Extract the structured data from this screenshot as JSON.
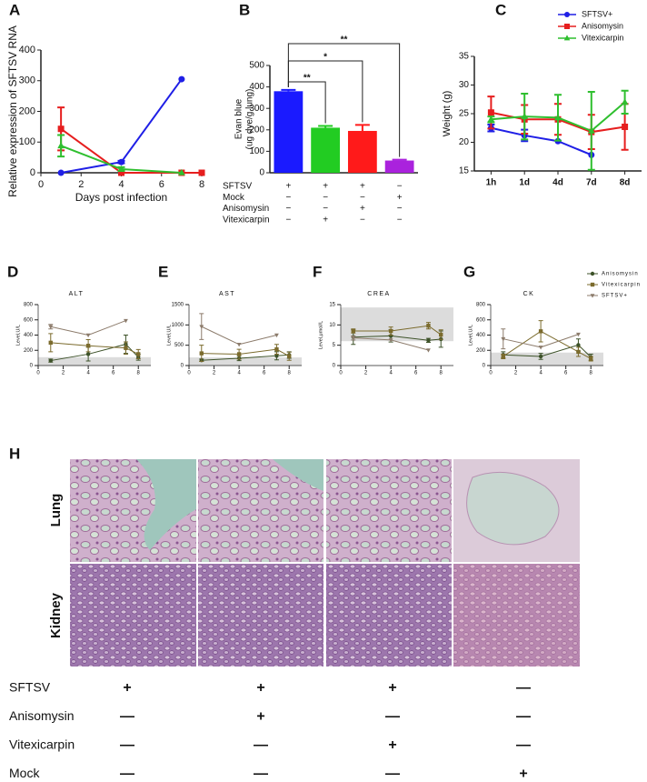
{
  "chart_data": [
    {
      "type": "line",
      "panel": "A",
      "ylabel": "Relative expression of SFTSV RNA",
      "xlabel": "Days post infection",
      "xlim": [
        0,
        8
      ],
      "xticks": [
        0,
        2,
        4,
        6,
        8
      ],
      "ylim": [
        0,
        400
      ],
      "yticks": [
        0,
        100,
        200,
        300,
        400
      ],
      "series": [
        {
          "color": "#1f1fe6",
          "marker": "circle",
          "x": [
            1,
            4,
            7
          ],
          "values": [
            0,
            35,
            305
          ],
          "errors": [
            0,
            4,
            0
          ]
        },
        {
          "color": "#e61e1e",
          "marker": "square",
          "x": [
            1,
            4,
            7,
            8
          ],
          "values": [
            143,
            0,
            0,
            0
          ],
          "errors": [
            70,
            0,
            0,
            0
          ]
        },
        {
          "color": "#2fbf2f",
          "marker": "triangle",
          "x": [
            1,
            4,
            7
          ],
          "values": [
            88,
            12,
            0
          ],
          "errors": [
            35,
            6,
            0
          ]
        }
      ]
    },
    {
      "type": "bar",
      "panel": "B",
      "ylabel": [
        "Evan blue",
        "(ug dye/g lung)"
      ],
      "ylim": [
        0,
        500
      ],
      "yticks": [
        0,
        100,
        200,
        300,
        400,
        500
      ],
      "values": [
        380,
        210,
        195,
        57
      ],
      "errors": [
        6,
        8,
        28,
        4
      ],
      "colors": [
        "#1a1aff",
        "#22cc22",
        "#ff1a1a",
        "#aa22dd"
      ],
      "annotations": [
        "**",
        "*",
        "**"
      ],
      "treatments": [
        {
          "label": "SFTSV",
          "cells": [
            "+",
            "+",
            "+",
            "−"
          ]
        },
        {
          "label": "Mock",
          "cells": [
            "−",
            "−",
            "−",
            "+"
          ]
        },
        {
          "label": "Anisomysin",
          "cells": [
            "−",
            "−",
            "+",
            "−"
          ]
        },
        {
          "label": "Vitexicarpin",
          "cells": [
            "−",
            "+",
            "−",
            "−"
          ]
        }
      ]
    },
    {
      "type": "line",
      "panel": "C",
      "ylabel": "Weight (g)",
      "categories": [
        "1h",
        "1d",
        "4d",
        "7d",
        "8d"
      ],
      "ylim": [
        15,
        35
      ],
      "yticks": [
        15,
        20,
        25,
        30,
        35
      ],
      "legend": "top-right",
      "series": [
        {
          "name": "SFTSV+",
          "color": "#1f1fe6",
          "marker": "circle",
          "values": [
            22.5,
            21.2,
            20.2,
            17.8,
            null
          ],
          "errors": [
            0.6,
            1,
            0,
            0,
            null
          ]
        },
        {
          "name": "Anisomysin",
          "color": "#e61e1e",
          "marker": "square",
          "values": [
            25.2,
            24,
            24,
            21.8,
            22.7
          ],
          "errors": [
            2.8,
            2.5,
            2.7,
            3,
            4
          ]
        },
        {
          "name": "Vitexicarpin",
          "color": "#2fbf2f",
          "marker": "triangle",
          "values": [
            24,
            24.5,
            24.3,
            22,
            27
          ],
          "errors": [
            0.5,
            4,
            4,
            6.8,
            2
          ]
        }
      ]
    },
    {
      "type": "line",
      "panel": "D",
      "title": "ALT",
      "ylabel": "Level,U/L",
      "xlim": [
        0,
        9
      ],
      "xticks": [
        0,
        2,
        4,
        6,
        8
      ],
      "ylim": [
        0,
        800
      ],
      "yticks": [
        0,
        200,
        400,
        600,
        800
      ],
      "reference_range": [
        0,
        110
      ],
      "series": [
        {
          "color": "#3d5229",
          "marker": "circle",
          "x": [
            1,
            4,
            7,
            8
          ],
          "values": [
            65,
            150,
            280,
            110
          ],
          "errors": [
            20,
            90,
            120,
            40
          ]
        },
        {
          "color": "#7b6b2d",
          "marker": "square",
          "x": [
            1,
            4,
            7,
            8
          ],
          "values": [
            300,
            260,
            230,
            150
          ],
          "errors": [
            120,
            80,
            80,
            60
          ]
        },
        {
          "color": "#8c7b6b",
          "marker": "triangle-down",
          "x": [
            1,
            4,
            7
          ],
          "values": [
            510,
            400,
            590
          ],
          "errors": [
            30,
            0,
            0
          ]
        }
      ]
    },
    {
      "type": "line",
      "panel": "E",
      "title": "AST",
      "ylabel": "Level,U/L",
      "xlim": [
        0,
        9
      ],
      "xticks": [
        0,
        2,
        4,
        6,
        8
      ],
      "ylim": [
        0,
        1500
      ],
      "yticks": [
        0,
        500,
        1000,
        1500
      ],
      "reference_range": [
        0,
        200
      ],
      "series": [
        {
          "color": "#3d5229",
          "marker": "circle",
          "x": [
            1,
            4,
            7,
            8
          ],
          "values": [
            130,
            180,
            240,
            260
          ],
          "errors": [
            30,
            60,
            100,
            80
          ]
        },
        {
          "color": "#7b6b2d",
          "marker": "square",
          "x": [
            1,
            4,
            7,
            8
          ],
          "values": [
            300,
            280,
            400,
            230
          ],
          "errors": [
            200,
            120,
            120,
            100
          ]
        },
        {
          "color": "#8c7b6b",
          "marker": "triangle-down",
          "x": [
            1,
            4,
            7
          ],
          "values": [
            960,
            520,
            750
          ],
          "errors": [
            320,
            0,
            0
          ]
        }
      ]
    },
    {
      "type": "line",
      "panel": "F",
      "title": "CREA",
      "ylabel": "Level,μmol/L",
      "xlim": [
        0,
        9
      ],
      "xticks": [
        0,
        2,
        4,
        6,
        8
      ],
      "ylim": [
        0,
        15
      ],
      "yticks": [
        0,
        5,
        10,
        15
      ],
      "reference_range": [
        6,
        14.3
      ],
      "series": [
        {
          "color": "#3d5229",
          "marker": "circle",
          "x": [
            1,
            4,
            7,
            8
          ],
          "values": [
            7,
            7.3,
            6.2,
            6.5
          ],
          "errors": [
            1.8,
            1.5,
            0.5,
            2
          ]
        },
        {
          "color": "#7b6b2d",
          "marker": "square",
          "x": [
            1,
            4,
            7,
            8
          ],
          "values": [
            8.5,
            8.5,
            9.8,
            7.6
          ],
          "errors": [
            0.5,
            1,
            0.8,
            1.2
          ]
        },
        {
          "color": "#8c7b6b",
          "marker": "triangle-down",
          "x": [
            1,
            4,
            7
          ],
          "values": [
            6.8,
            6.3,
            3.8
          ],
          "errors": [
            0.5,
            0,
            0
          ]
        }
      ]
    },
    {
      "type": "line",
      "panel": "G",
      "title": "CK",
      "ylabel": "Level,U/L",
      "xlim": [
        0,
        9
      ],
      "xticks": [
        0,
        2,
        4,
        6,
        8
      ],
      "ylim": [
        0,
        800
      ],
      "yticks": [
        0,
        200,
        400,
        600,
        800
      ],
      "reference_range": [
        0,
        170
      ],
      "legend": "top-right",
      "series": [
        {
          "name": "Anisomysin",
          "color": "#3d5229",
          "marker": "circle",
          "x": [
            1,
            4,
            7,
            8
          ],
          "values": [
            140,
            120,
            270,
            110
          ],
          "errors": [
            40,
            40,
            80,
            40
          ]
        },
        {
          "name": "Vitexicarpin",
          "color": "#7b6b2d",
          "marker": "square",
          "x": [
            1,
            4,
            7,
            8
          ],
          "values": [
            120,
            450,
            180,
            90
          ],
          "errors": [
            30,
            140,
            60,
            30
          ]
        },
        {
          "name": "SFTSV+",
          "color": "#8c7b6b",
          "marker": "triangle-down",
          "x": [
            1,
            4,
            7
          ],
          "values": [
            350,
            240,
            410
          ],
          "errors": [
            130,
            0,
            0
          ]
        }
      ]
    }
  ],
  "panel_h": {
    "label": "H",
    "rows": [
      "Lung",
      "Kidney"
    ],
    "treatments": [
      {
        "label": "SFTSV",
        "cells": [
          "+",
          "+",
          "+",
          "—"
        ]
      },
      {
        "label": "Anisomysin",
        "cells": [
          "—",
          "+",
          "—",
          "—"
        ]
      },
      {
        "label": "Vitexicarpin",
        "cells": [
          "—",
          "—",
          "+",
          "—"
        ]
      },
      {
        "label": "Mock",
        "cells": [
          "—",
          "—",
          "—",
          "+"
        ]
      }
    ]
  }
}
